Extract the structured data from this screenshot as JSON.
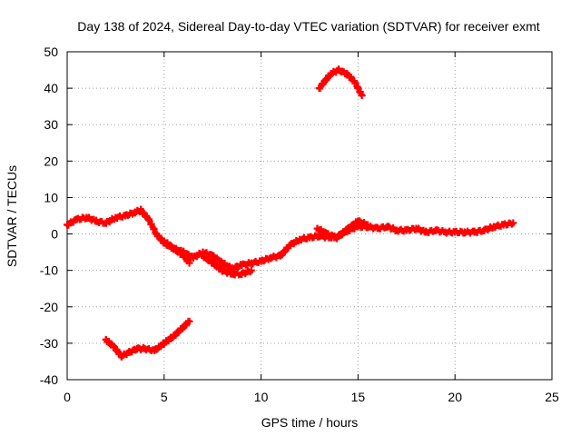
{
  "chart_data": {
    "type": "scatter",
    "title": "Day 138 of 2024, Sidereal Day-to-day VTEC variation (SDTVAR) for receiver exmt",
    "xlabel": "GPS time / hours",
    "ylabel": "SDTVAR / TECUs",
    "xlim": [
      0,
      25
    ],
    "ylim": [
      -40,
      50
    ],
    "xticks": [
      0,
      5,
      10,
      15,
      20,
      25
    ],
    "yticks": [
      -40,
      -30,
      -20,
      -10,
      0,
      10,
      20,
      30,
      40,
      50
    ],
    "grid": true,
    "marker_color": "#ff0000",
    "series": [
      {
        "name": "main-track",
        "points": [
          [
            0,
            2.5
          ],
          [
            0.5,
            4
          ],
          [
            1,
            4.5
          ],
          [
            1.5,
            3.5
          ],
          [
            2,
            3
          ],
          [
            2.5,
            4.5
          ],
          [
            3,
            5
          ],
          [
            3.5,
            6
          ],
          [
            3.8,
            6.5
          ],
          [
            4.2,
            4
          ],
          [
            4.6,
            0
          ],
          [
            5,
            -2.5
          ],
          [
            5.5,
            -4
          ],
          [
            6,
            -5
          ],
          [
            6.5,
            -6.5
          ],
          [
            7,
            -5
          ],
          [
            7.5,
            -6
          ],
          [
            8,
            -8
          ],
          [
            8.5,
            -9.5
          ],
          [
            9,
            -8.5
          ],
          [
            9.5,
            -8
          ],
          [
            10,
            -7.5
          ],
          [
            10.5,
            -6.5
          ],
          [
            11,
            -6
          ],
          [
            11.5,
            -3
          ],
          [
            12,
            -1.5
          ],
          [
            12.5,
            -1
          ],
          [
            13,
            -0.5
          ],
          [
            13.5,
            -1
          ],
          [
            14,
            -0.5
          ],
          [
            14.5,
            1
          ],
          [
            15,
            2
          ],
          [
            15.5,
            2
          ],
          [
            16,
            1.5
          ],
          [
            16.5,
            2
          ],
          [
            17,
            1
          ],
          [
            17.5,
            1
          ],
          [
            18,
            1.5
          ],
          [
            18.5,
            0.5
          ],
          [
            19,
            1
          ],
          [
            19.5,
            0.5
          ],
          [
            20,
            0.5
          ],
          [
            20.5,
            0.5
          ],
          [
            21,
            0.5
          ],
          [
            21.5,
            1
          ],
          [
            22,
            2
          ],
          [
            22.5,
            2.5
          ],
          [
            23,
            3
          ]
        ]
      },
      {
        "name": "lower-branch",
        "points": [
          [
            5,
            -2
          ],
          [
            5.5,
            -4
          ],
          [
            6,
            -6
          ],
          [
            6.3,
            -8
          ]
        ]
      },
      {
        "name": "dip-branch",
        "points": [
          [
            7,
            -6
          ],
          [
            7.5,
            -8
          ],
          [
            8,
            -10
          ],
          [
            8.5,
            -11
          ],
          [
            9,
            -11
          ],
          [
            9.5,
            -10
          ]
        ]
      },
      {
        "name": "upper-offset",
        "points": [
          [
            12.9,
            1.5
          ],
          [
            13.4,
            0
          ],
          [
            13.9,
            -1
          ],
          [
            14.5,
            1.5
          ],
          [
            15,
            3.5
          ],
          [
            15.5,
            2.5
          ]
        ]
      },
      {
        "name": "arc-top",
        "points": [
          [
            13,
            40
          ],
          [
            13.3,
            42
          ],
          [
            13.6,
            44
          ],
          [
            14,
            45
          ],
          [
            14.4,
            44
          ],
          [
            14.8,
            42
          ],
          [
            15.2,
            38
          ]
        ]
      },
      {
        "name": "negative-track",
        "points": [
          [
            2,
            -29
          ],
          [
            2.4,
            -31
          ],
          [
            2.8,
            -33.5
          ],
          [
            3.2,
            -32.5
          ],
          [
            3.6,
            -31.5
          ],
          [
            4,
            -31.5
          ],
          [
            4.5,
            -32
          ],
          [
            5,
            -30
          ],
          [
            5.5,
            -28
          ],
          [
            6,
            -25.5
          ],
          [
            6.3,
            -24
          ]
        ]
      }
    ]
  }
}
